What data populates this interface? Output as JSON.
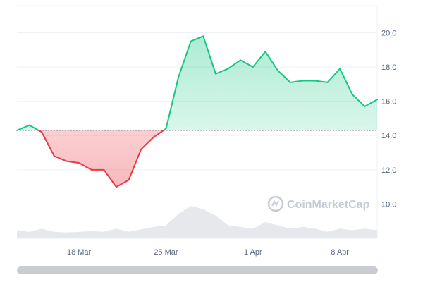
{
  "chart_data": {
    "type": "line",
    "x_ticks": [
      "18 Mar",
      "25 Mar",
      "1 Apr",
      "8 Apr"
    ],
    "y_ticks": [
      "10.0",
      "12.0",
      "14.0",
      "16.0",
      "18.0",
      "20.0"
    ],
    "ylim": [
      8.0,
      21.5
    ],
    "x_range": [
      "2024-03-13",
      "2024-04-11"
    ],
    "baseline": 14.3,
    "colors": {
      "up": "#16c784",
      "down": "#ea3943",
      "baseline": "#58667e",
      "volume": "#e6e8ec",
      "grid": "#eff2f5"
    },
    "series": [
      {
        "x": [
          "2024-03-13",
          "2024-03-14",
          "2024-03-15",
          "2024-03-16",
          "2024-03-17",
          "2024-03-18",
          "2024-03-19",
          "2024-03-20",
          "2024-03-21",
          "2024-03-22",
          "2024-03-23",
          "2024-03-24",
          "2024-03-25",
          "2024-03-26",
          "2024-03-27",
          "2024-03-28",
          "2024-03-29",
          "2024-03-30",
          "2024-03-31",
          "2024-04-01",
          "2024-04-02",
          "2024-04-03",
          "2024-04-04",
          "2024-04-05",
          "2024-04-06",
          "2024-04-07",
          "2024-04-08",
          "2024-04-09",
          "2024-04-10",
          "2024-04-11"
        ],
        "values": [
          14.3,
          14.6,
          14.2,
          12.8,
          12.5,
          12.4,
          12.0,
          12.0,
          11.0,
          11.4,
          13.2,
          13.9,
          14.4,
          17.4,
          19.5,
          19.8,
          17.6,
          17.9,
          18.4,
          18.0,
          18.9,
          17.8,
          17.1,
          17.2,
          17.2,
          17.1,
          17.9,
          16.4,
          15.7,
          16.1
        ]
      }
    ]
  },
  "volume": {
    "x": [
      "2024-03-13",
      "2024-03-14",
      "2024-03-15",
      "2024-03-16",
      "2024-03-17",
      "2024-03-18",
      "2024-03-19",
      "2024-03-20",
      "2024-03-21",
      "2024-03-22",
      "2024-03-23",
      "2024-03-24",
      "2024-03-25",
      "2024-03-26",
      "2024-03-27",
      "2024-03-28",
      "2024-03-29",
      "2024-03-30",
      "2024-03-31",
      "2024-04-01",
      "2024-04-02",
      "2024-04-03",
      "2024-04-04",
      "2024-04-05",
      "2024-04-06",
      "2024-04-07",
      "2024-04-08",
      "2024-04-09",
      "2024-04-10",
      "2024-04-11"
    ],
    "values": [
      0.25,
      0.2,
      0.3,
      0.2,
      0.18,
      0.2,
      0.22,
      0.2,
      0.3,
      0.2,
      0.28,
      0.35,
      0.4,
      0.75,
      1.0,
      0.9,
      0.7,
      0.4,
      0.35,
      0.3,
      0.5,
      0.4,
      0.3,
      0.35,
      0.3,
      0.2,
      0.3,
      0.25,
      0.3,
      0.25
    ]
  },
  "watermark": "CoinMarketCap"
}
